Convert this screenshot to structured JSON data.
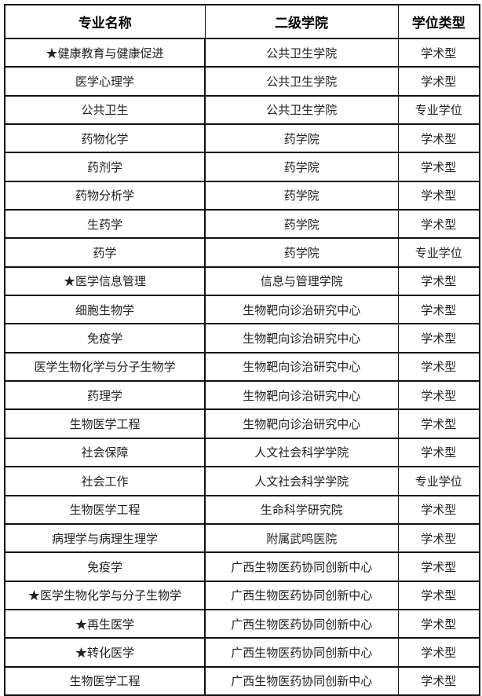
{
  "table": {
    "headers": [
      "专业名称",
      "二级学院",
      "学位类型"
    ],
    "rows": [
      [
        "★健康教育与健康促进",
        "公共卫生学院",
        "学术型"
      ],
      [
        "医学心理学",
        "公共卫生学院",
        "学术型"
      ],
      [
        "公共卫生",
        "公共卫生学院",
        "专业学位"
      ],
      [
        "药物化学",
        "药学院",
        "学术型"
      ],
      [
        "药剂学",
        "药学院",
        "学术型"
      ],
      [
        "药物分析学",
        "药学院",
        "学术型"
      ],
      [
        "生药学",
        "药学院",
        "学术型"
      ],
      [
        "药学",
        "药学院",
        "专业学位"
      ],
      [
        "★医学信息管理",
        "信息与管理学院",
        "学术型"
      ],
      [
        "细胞生物学",
        "生物靶向诊治研究中心",
        "学术型"
      ],
      [
        "免疫学",
        "生物靶向诊治研究中心",
        "学术型"
      ],
      [
        "医学生物化学与分子生物学",
        "生物靶向诊治研究中心",
        "学术型"
      ],
      [
        "药理学",
        "生物靶向诊治研究中心",
        "学术型"
      ],
      [
        "生物医学工程",
        "生物靶向诊治研究中心",
        "学术型"
      ],
      [
        "社会保障",
        "人文社会科学学院",
        "学术型"
      ],
      [
        "社会工作",
        "人文社会科学学院",
        "专业学位"
      ],
      [
        "生物医学工程",
        "生命科学研究院",
        "学术型"
      ],
      [
        "病理学与病理生理学",
        "附属武鸣医院",
        "学术型"
      ],
      [
        "免疫学",
        "广西生物医药协同创新中心",
        "学术型"
      ],
      [
        "★医学生物化学与分子生物学",
        "广西生物医药协同创新中心",
        "学术型"
      ],
      [
        "★再生医学",
        "广西生物医药协同创新中心",
        "学术型"
      ],
      [
        "★转化医学",
        "广西生物医药协同创新中心",
        "学术型"
      ],
      [
        "生物医学工程",
        "广西生物医药协同创新中心",
        "学术型"
      ]
    ]
  }
}
